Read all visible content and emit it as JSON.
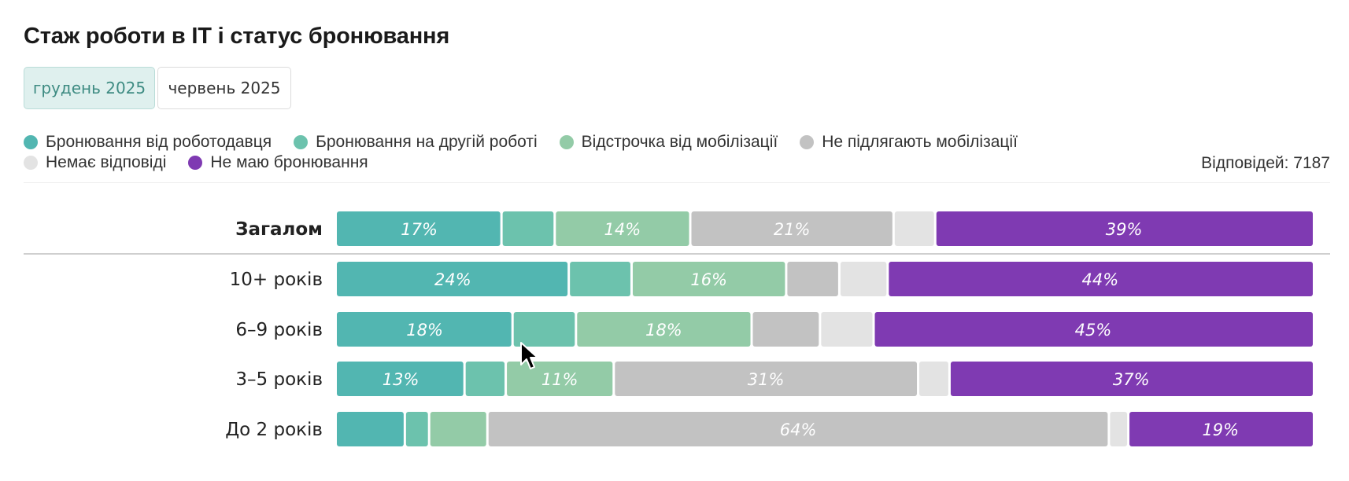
{
  "title": "Стаж роботи в IT і статус бронювання",
  "tabs": [
    {
      "label": "грудень 2025",
      "active": true
    },
    {
      "label": "червень 2025",
      "active": false
    }
  ],
  "legend": [
    {
      "label": "Бронювання від роботодавця",
      "color": "#52b6b1"
    },
    {
      "label": "Бронювання на другій роботі",
      "color": "#6cc2ad"
    },
    {
      "label": "Відстрочка від мобілізації",
      "color": "#93cba7"
    },
    {
      "label": "Не підлягають мобілізації",
      "color": "#c2c2c2"
    },
    {
      "label": "Немає відповіді",
      "color": "#e3e3e3"
    },
    {
      "label": "Не маю бронювання",
      "color": "#7f3ab2"
    }
  ],
  "responses": "Відповідей: 7187",
  "chart_data": {
    "type": "bar",
    "orientation": "horizontal",
    "stacked": true,
    "unit": "%",
    "categories": [
      "Загалом",
      "10+ років",
      "6–9 років",
      "3–5 років",
      "До 2 років"
    ],
    "series": [
      {
        "name": "Бронювання від роботодавця",
        "values": [
          17,
          24,
          18,
          13,
          7
        ]
      },
      {
        "name": "Бронювання на другій роботі",
        "values": [
          5.5,
          6.5,
          6.5,
          4.2,
          2.5
        ]
      },
      {
        "name": "Відстрочка від мобілізації",
        "values": [
          14,
          16,
          18,
          11,
          6
        ]
      },
      {
        "name": "Не підлягають мобілізації",
        "values": [
          21,
          5.5,
          7,
          31,
          64
        ]
      },
      {
        "name": "Немає відповіді",
        "values": [
          4.3,
          5,
          5.5,
          3.2,
          2
        ]
      },
      {
        "name": "Не маю бронювання",
        "values": [
          39,
          44,
          45,
          37,
          19
        ]
      }
    ],
    "data_labels": [
      [
        "17%",
        "",
        "14%",
        "21%",
        "",
        "39%"
      ],
      [
        "24%",
        "",
        "16%",
        "",
        "",
        "44%"
      ],
      [
        "18%",
        "",
        "18%",
        "",
        "",
        "45%"
      ],
      [
        "13%",
        "",
        "11%",
        "31%",
        "",
        "37%"
      ],
      [
        "",
        "",
        "",
        "64%",
        "",
        "19%"
      ]
    ]
  }
}
